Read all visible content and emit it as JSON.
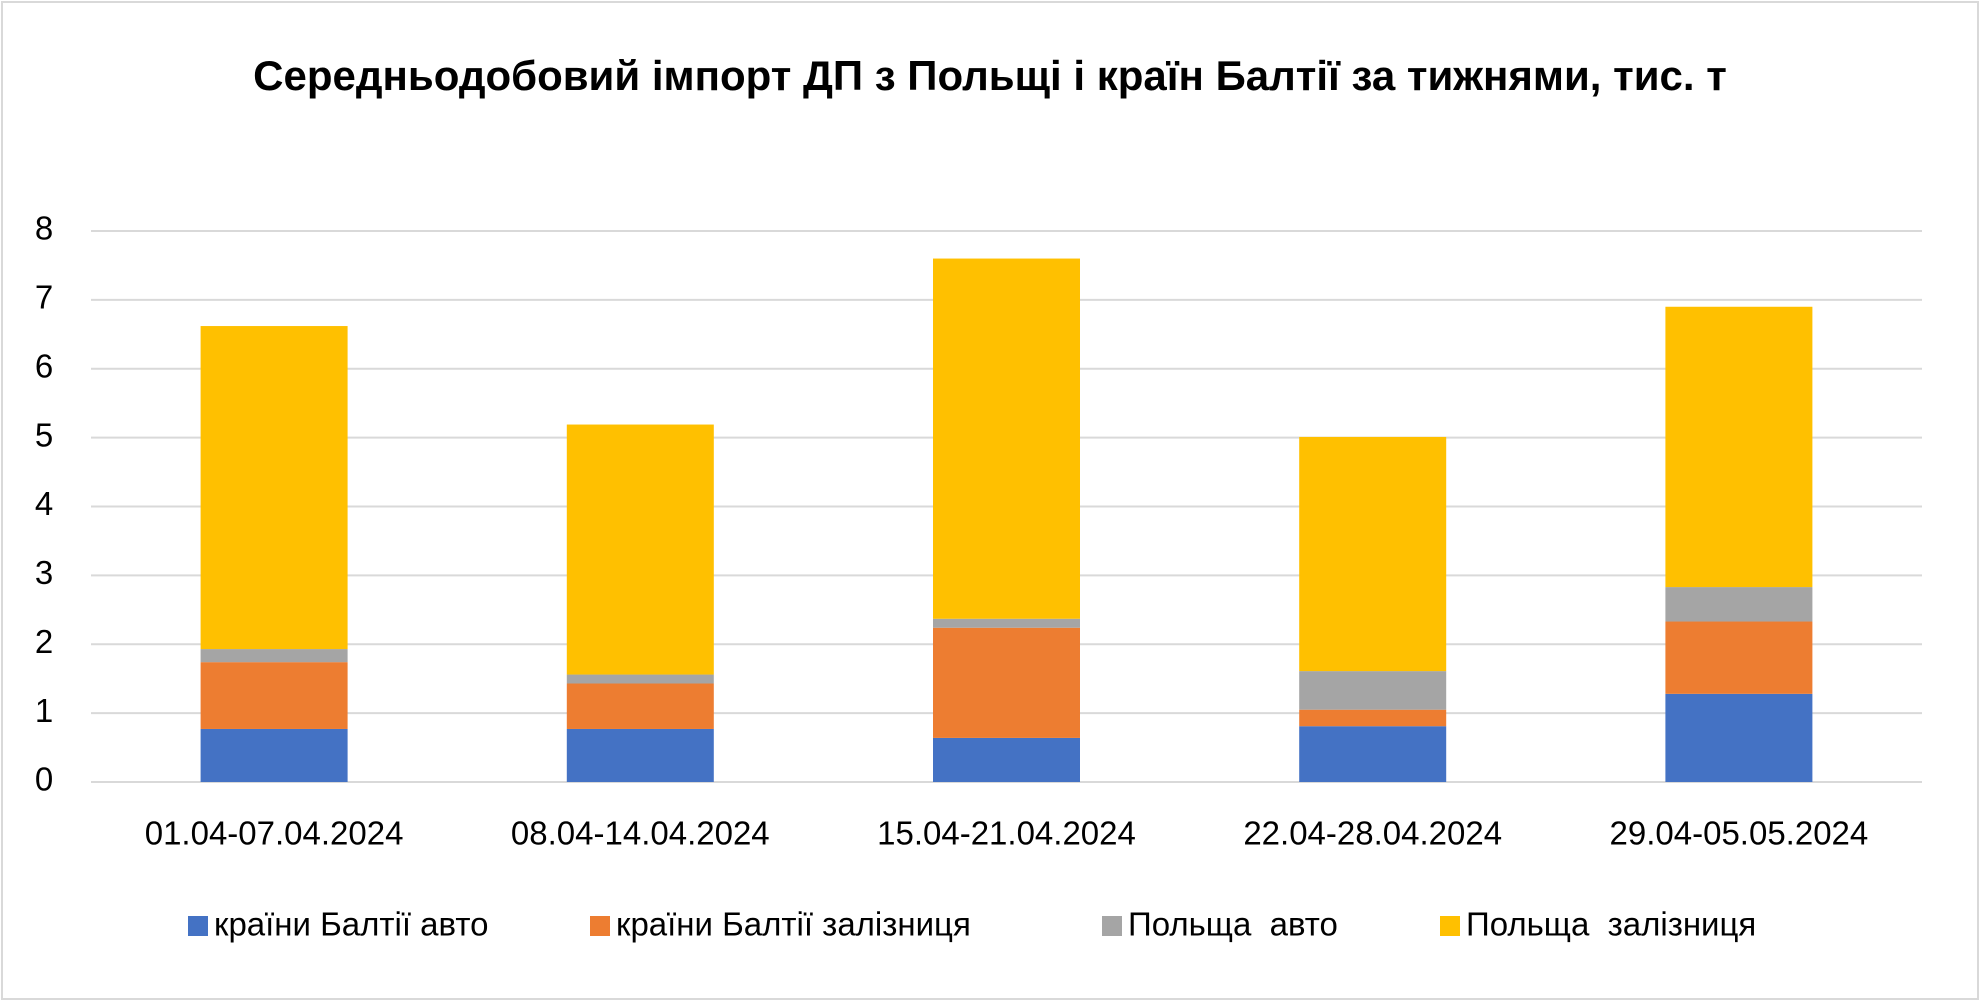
{
  "chart_data": {
    "type": "stacked_bar",
    "title": "Середньодобовий імпорт ДП з Польщі і країн Балтії за тижнями, тис. т",
    "categories": [
      "01.04-07.04.2024",
      "08.04-14.04.2024",
      "15.04-21.04.2024",
      "22.04-28.04.2024",
      "29.04-05.05.2024"
    ],
    "series": [
      {
        "name": "країни Балтії авто",
        "color": "#4472c4",
        "values": [
          0.77,
          0.77,
          0.64,
          0.81,
          1.28
        ]
      },
      {
        "name": "країни Балтії залізниця",
        "color": "#ed7d31",
        "values": [
          0.97,
          0.66,
          1.6,
          0.24,
          1.05
        ]
      },
      {
        "name": "Польща  авто",
        "color": "#a5a5a5",
        "values": [
          0.19,
          0.13,
          0.13,
          0.56,
          0.5
        ]
      },
      {
        "name": "Польща  залізниця",
        "color": "#ffc000",
        "values": [
          4.69,
          3.63,
          5.23,
          3.4,
          4.07
        ]
      }
    ],
    "ylim": [
      0,
      8
    ],
    "yticks": [
      0,
      1,
      2,
      3,
      4,
      5,
      6,
      7,
      8
    ],
    "grid": true,
    "legend": "bottom"
  }
}
